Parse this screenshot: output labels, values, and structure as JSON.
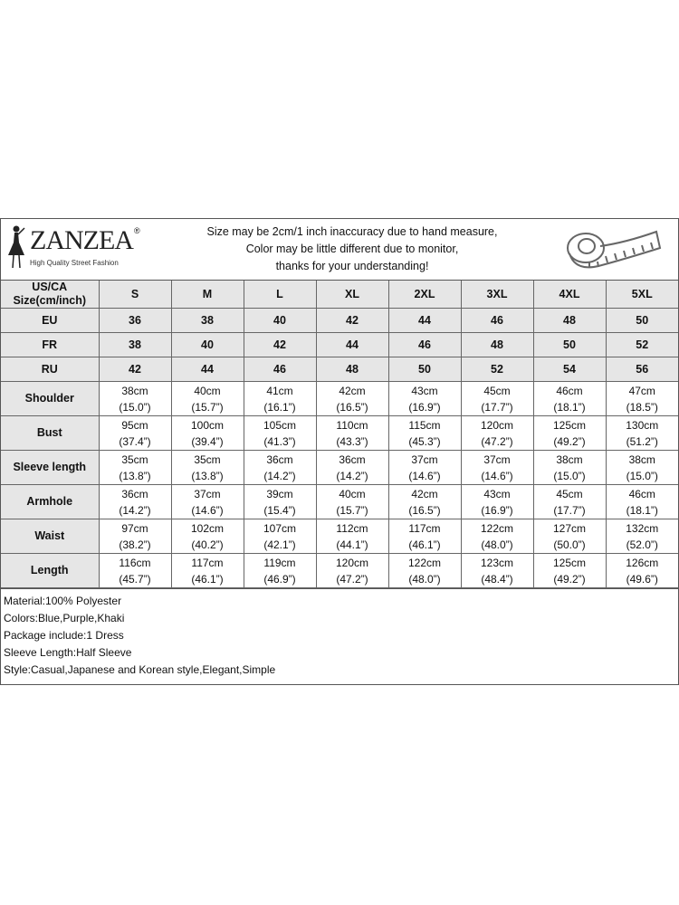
{
  "header": {
    "brand": "ZANZEA",
    "registered": "®",
    "tagline": "High Quality Street Fashion",
    "notice": [
      "Size may be 2cm/1 inch inaccuracy due to hand measure,",
      "Color may be little different due to monitor,",
      "thanks for your understanding!"
    ],
    "icon": "measuring-tape-icon"
  },
  "table": {
    "corner_label": [
      "US/CA",
      "Size(cm/inch)"
    ],
    "sizes": [
      "S",
      "M",
      "L",
      "XL",
      "2XL",
      "3XL",
      "4XL",
      "5XL"
    ],
    "conversions": [
      {
        "label": "EU",
        "values": [
          "36",
          "38",
          "40",
          "42",
          "44",
          "46",
          "48",
          "50"
        ]
      },
      {
        "label": "FR",
        "values": [
          "38",
          "40",
          "42",
          "44",
          "46",
          "48",
          "50",
          "52"
        ]
      },
      {
        "label": "RU",
        "values": [
          "42",
          "44",
          "46",
          "48",
          "50",
          "52",
          "54",
          "56"
        ]
      }
    ],
    "measurements": [
      {
        "label": "Shoulder",
        "cm": [
          "38cm",
          "40cm",
          "41cm",
          "42cm",
          "43cm",
          "45cm",
          "46cm",
          "47cm"
        ],
        "inch": [
          "(15.0”)",
          "(15.7”)",
          "(16.1”)",
          "(16.5”)",
          "(16.9”)",
          "(17.7”)",
          "(18.1”)",
          "(18.5”)"
        ]
      },
      {
        "label": "Bust",
        "cm": [
          "95cm",
          "100cm",
          "105cm",
          "110cm",
          "115cm",
          "120cm",
          "125cm",
          "130cm"
        ],
        "inch": [
          "(37.4”)",
          "(39.4”)",
          "(41.3”)",
          "(43.3”)",
          "(45.3”)",
          "(47.2”)",
          "(49.2”)",
          "(51.2”)"
        ]
      },
      {
        "label": "Sleeve length",
        "cm": [
          "35cm",
          "35cm",
          "36cm",
          "36cm",
          "37cm",
          "37cm",
          "38cm",
          "38cm"
        ],
        "inch": [
          "(13.8”)",
          "(13.8”)",
          "(14.2”)",
          "(14.2”)",
          "(14.6”)",
          "(14.6”)",
          "(15.0”)",
          "(15.0”)"
        ]
      },
      {
        "label": "Armhole",
        "cm": [
          "36cm",
          "37cm",
          "39cm",
          "40cm",
          "42cm",
          "43cm",
          "45cm",
          "46cm"
        ],
        "inch": [
          "(14.2”)",
          "(14.6”)",
          "(15.4”)",
          "(15.7”)",
          "(16.5”)",
          "(16.9”)",
          "(17.7”)",
          "(18.1”)"
        ]
      },
      {
        "label": "Waist",
        "cm": [
          "97cm",
          "102cm",
          "107cm",
          "112cm",
          "117cm",
          "122cm",
          "127cm",
          "132cm"
        ],
        "inch": [
          "(38.2”)",
          "(40.2”)",
          "(42.1”)",
          "(44.1”)",
          "(46.1”)",
          "(48.0”)",
          "(50.0”)",
          "(52.0”)"
        ]
      },
      {
        "label": "Length",
        "cm": [
          "116cm",
          "117cm",
          "119cm",
          "120cm",
          "122cm",
          "123cm",
          "125cm",
          "126cm"
        ],
        "inch": [
          "(45.7”)",
          "(46.1”)",
          "(46.9”)",
          "(47.2”)",
          "(48.0”)",
          "(48.4”)",
          "(49.2”)",
          "(49.6”)"
        ]
      }
    ]
  },
  "notes": [
    "Material:100% Polyester",
    "Colors:Blue,Purple,Khaki",
    "Package include:1 Dress",
    "Sleeve Length:Half Sleeve",
    "Style:Casual,Japanese and Korean style,Elegant,Simple"
  ]
}
